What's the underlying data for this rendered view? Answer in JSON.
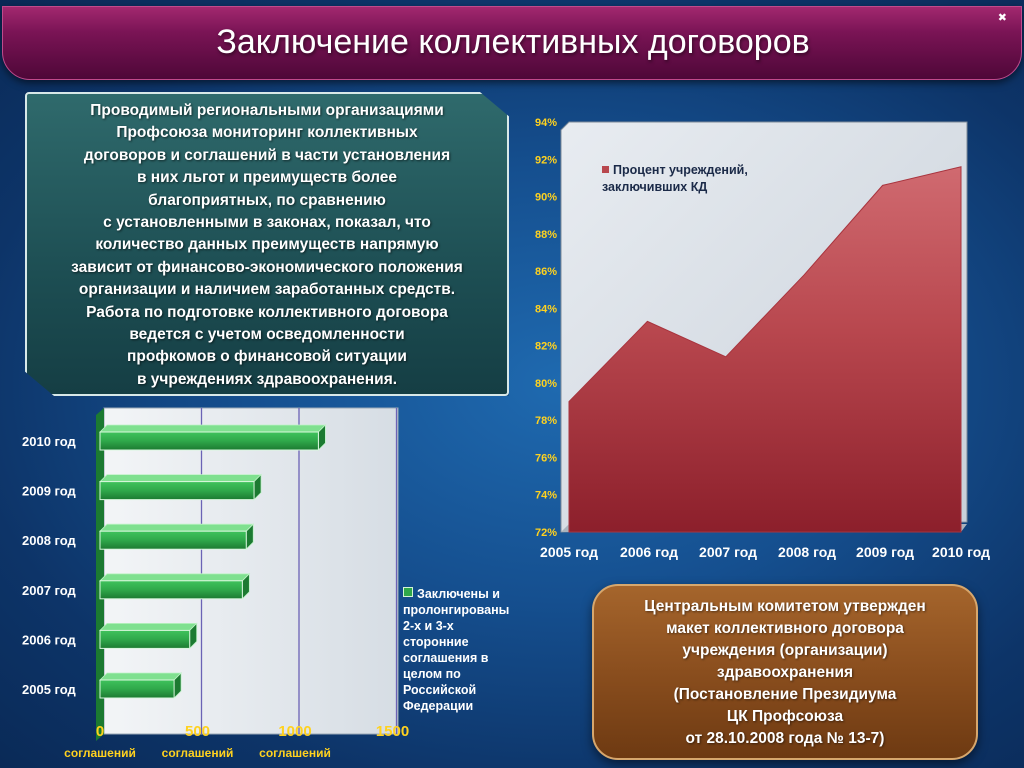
{
  "header": {
    "title": "Заключение коллективных договоров",
    "corner_glyph": "✖"
  },
  "info_box": {
    "lines": [
      "Проводимый региональными организациями",
      "Профсоюза мониторинг  коллективных",
      "договоров и соглашений в части установления",
      "в них  льгот и преимуществ более",
      "благоприятных, по сравнению",
      "с установленными в законах, показал, что",
      "количество данных преимуществ напрямую",
      "зависит от финансово-экономического положения",
      "организации и наличием заработанных средств.",
      "Работа по подготовке коллективного договора",
      "ведется с учетом осведомленности",
      "профкомов о финансовой ситуации",
      "в учреждениях здравоохранения."
    ]
  },
  "note_box": {
    "lines": [
      "Центральным комитетом утвержден",
      "макет коллективного договора",
      "учреждения (организации)",
      "здравоохранения",
      "(Постановление Президиума",
      "ЦК Профсоюза",
      "от 28.10.2008 года № 13-7)"
    ]
  },
  "colors": {
    "bar_green": "#2fa84a",
    "area_red": "#b8474e",
    "tick_yellow": "#ffd21f",
    "title_purple": "#7a1455",
    "note_brown": "#8a4e1e"
  },
  "chart_data": [
    {
      "type": "bar",
      "orientation": "horizontal",
      "categories": [
        "2005 год",
        "2006 год",
        "2007 год",
        "2008 год",
        "2009 год",
        "2010 год"
      ],
      "series": [
        {
          "name": "Заключены и пролонгированы 2-х и 3-х сторонние соглашения в целом по Российской Федерации",
          "values": [
            380,
            460,
            730,
            750,
            790,
            1120
          ]
        }
      ],
      "xlim": [
        0,
        1500
      ],
      "xticks": [
        "0",
        "500",
        "1000",
        "1500"
      ],
      "xtick_sublabels": [
        "соглашений",
        "соглашений",
        "соглашений"
      ],
      "legend_lines": [
        "Заключены и",
        "пролонгированы",
        "2-х и 3-х",
        "сторонние",
        "соглашения в",
        "целом по",
        "Российской",
        "Федерации"
      ],
      "legend_position": "right",
      "grid": true
    },
    {
      "type": "area",
      "categories": [
        "2005 год",
        "2006 год",
        "2007 год",
        "2008 год",
        "2009 год",
        "2010 год"
      ],
      "series": [
        {
          "name": "Процент учреждений, заключивших КД",
          "values": [
            79.0,
            83.3,
            81.4,
            85.8,
            90.6,
            91.6
          ]
        }
      ],
      "ylim": [
        72,
        94
      ],
      "yticks": [
        "72%",
        "74%",
        "76%",
        "78%",
        "80%",
        "82%",
        "84%",
        "86%",
        "88%",
        "90%",
        "92%",
        "94%"
      ],
      "legend_lines": [
        "Процент учреждений,",
        "заключивших КД"
      ],
      "legend_position": "top-left"
    }
  ]
}
